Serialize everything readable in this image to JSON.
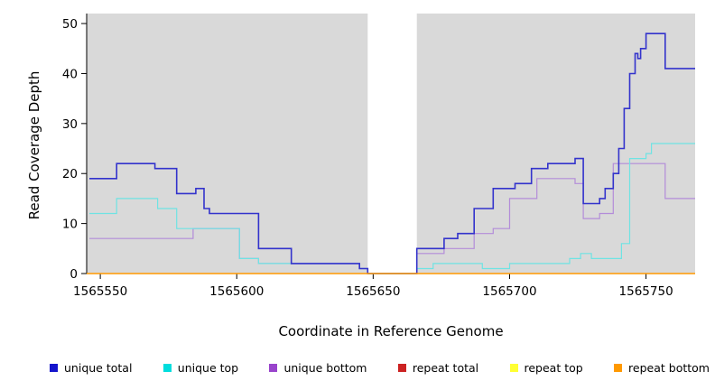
{
  "chart_data": {
    "type": "line",
    "title": "",
    "xlabel": "Coordinate in Reference Genome",
    "ylabel": "Read Coverage Depth",
    "xlim": [
      1565545,
      1565768
    ],
    "ylim": [
      0,
      52
    ],
    "xticks": [
      1565550,
      1565600,
      1565650,
      1565700,
      1565750
    ],
    "yticks": [
      0,
      10,
      20,
      30,
      40,
      50
    ],
    "plot_bg": "#d9d9d9",
    "gap_band": {
      "x0": 1565648,
      "x1": 1565666,
      "color": "#ffffff"
    },
    "grid": "off",
    "legend_position": "bottom",
    "series": [
      {
        "name": "unique bottom",
        "color": "#b38cd9",
        "width": 1.2,
        "step_points": [
          [
            1565546,
            7
          ],
          [
            1565584,
            9
          ],
          [
            1565601,
            3
          ],
          [
            1565608,
            2
          ],
          [
            1565645,
            1
          ],
          [
            1565648,
            0
          ],
          [
            1565666,
            4
          ],
          [
            1565676,
            5
          ],
          [
            1565687,
            8
          ],
          [
            1565694,
            9
          ],
          [
            1565700,
            15
          ],
          [
            1565710,
            19
          ],
          [
            1565724,
            18
          ],
          [
            1565727,
            11
          ],
          [
            1565733,
            12
          ],
          [
            1565738,
            22
          ],
          [
            1565757,
            15
          ]
        ],
        "x_end": 1565768
      },
      {
        "name": "unique top",
        "color": "#6fe3e3",
        "width": 1.2,
        "step_points": [
          [
            1565546,
            12
          ],
          [
            1565556,
            15
          ],
          [
            1565571,
            13
          ],
          [
            1565578,
            9
          ],
          [
            1565601,
            3
          ],
          [
            1565608,
            2
          ],
          [
            1565645,
            1
          ],
          [
            1565648,
            0
          ],
          [
            1565666,
            1
          ],
          [
            1565672,
            2
          ],
          [
            1565690,
            1
          ],
          [
            1565700,
            2
          ],
          [
            1565722,
            3
          ],
          [
            1565726,
            4
          ],
          [
            1565730,
            3
          ],
          [
            1565741,
            6
          ],
          [
            1565744,
            23
          ],
          [
            1565750,
            24
          ],
          [
            1565752,
            26
          ]
        ],
        "x_end": 1565768
      },
      {
        "name": "unique total",
        "color": "#3333cc",
        "width": 1.6,
        "step_points": [
          [
            1565546,
            19
          ],
          [
            1565556,
            22
          ],
          [
            1565570,
            21
          ],
          [
            1565578,
            16
          ],
          [
            1565585,
            17
          ],
          [
            1565588,
            13
          ],
          [
            1565590,
            12
          ],
          [
            1565608,
            5
          ],
          [
            1565620,
            2
          ],
          [
            1565645,
            1
          ],
          [
            1565648,
            0
          ],
          [
            1565666,
            5
          ],
          [
            1565676,
            7
          ],
          [
            1565681,
            8
          ],
          [
            1565687,
            13
          ],
          [
            1565694,
            17
          ],
          [
            1565702,
            18
          ],
          [
            1565708,
            21
          ],
          [
            1565714,
            22
          ],
          [
            1565724,
            23
          ],
          [
            1565727,
            14
          ],
          [
            1565733,
            15
          ],
          [
            1565735,
            17
          ],
          [
            1565738,
            20
          ],
          [
            1565740,
            25
          ],
          [
            1565742,
            33
          ],
          [
            1565744,
            40
          ],
          [
            1565746,
            44
          ],
          [
            1565747,
            43
          ],
          [
            1565748,
            45
          ],
          [
            1565750,
            48
          ],
          [
            1565757,
            41
          ]
        ],
        "x_end": 1565768
      },
      {
        "name": "repeat bottom",
        "color": "#ff9900",
        "width": 1.4,
        "step_points": [
          [
            1565545,
            0
          ]
        ],
        "x_end": 1565768
      }
    ],
    "legend": [
      {
        "label": "unique total",
        "color": "#1414cc"
      },
      {
        "label": "unique top",
        "color": "#00dddd"
      },
      {
        "label": "unique bottom",
        "color": "#9944cc"
      },
      {
        "label": "repeat total",
        "color": "#cc2222"
      },
      {
        "label": "repeat top",
        "color": "#ffff33"
      },
      {
        "label": "repeat bottom",
        "color": "#ff9900"
      }
    ]
  }
}
